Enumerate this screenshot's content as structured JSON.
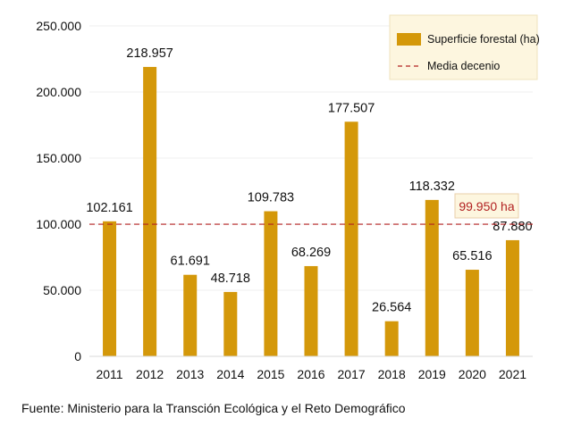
{
  "chart_data": {
    "type": "bar",
    "categories": [
      "2011",
      "2012",
      "2013",
      "2014",
      "2015",
      "2016",
      "2017",
      "2018",
      "2019",
      "2020",
      "2021"
    ],
    "values": [
      102161,
      218957,
      61691,
      48718,
      109783,
      68269,
      177507,
      26564,
      118332,
      65516,
      87880
    ],
    "data_labels": [
      "102.161",
      "218.957",
      "61.691",
      "48.718",
      "109.783",
      "68.269",
      "177.507",
      "26.564",
      "118.332",
      "65.516",
      "87.880"
    ],
    "yticks": [
      0,
      50000,
      100000,
      150000,
      200000,
      250000
    ],
    "ytick_labels": [
      "0",
      "50.000",
      "100.000",
      "150.000",
      "200.000",
      "250.000"
    ],
    "ylim": [
      0,
      250000
    ],
    "grid": true,
    "legend_position": "top-right",
    "series": [
      {
        "name": "Superficie forestal (ha)",
        "color": "#D4980A"
      }
    ],
    "reference_line": {
      "name": "Media decenio",
      "value": 99950,
      "label": "99.950 ha",
      "color": "#B22222",
      "style": "dashed"
    }
  },
  "source": "Fuente: Ministerio para la Transción Ecológica y el Reto Demográfico"
}
